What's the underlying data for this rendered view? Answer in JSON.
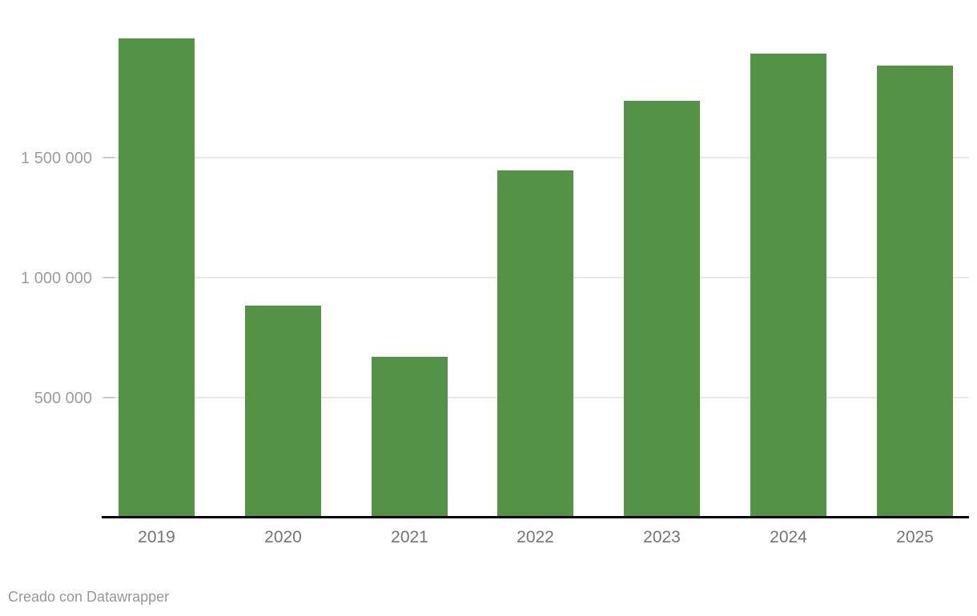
{
  "chart_data": {
    "type": "bar",
    "categories": [
      "2019",
      "2020",
      "2021",
      "2022",
      "2023",
      "2024",
      "2025"
    ],
    "values": [
      2000000,
      885000,
      675000,
      1450000,
      1740000,
      1935000,
      1885000
    ],
    "title": "",
    "xlabel": "",
    "ylabel": "",
    "ylim": [
      0,
      2000000
    ],
    "yticks": [
      {
        "value": 500000,
        "label": "500 000"
      },
      {
        "value": 1000000,
        "label": "1 000 000"
      },
      {
        "value": 1500000,
        "label": "1 500 000"
      }
    ],
    "grid": true,
    "legend": "none",
    "colors": {
      "bar": "#549346",
      "grid": "#e8e8e8",
      "tick": "#c9c9c9",
      "axis": "#000000",
      "y_label": "#9d9d9d",
      "x_label": "#747474",
      "footer": "#979797",
      "background": "#ffffff"
    }
  },
  "footer": {
    "attribution": "Creado con Datawrapper"
  }
}
